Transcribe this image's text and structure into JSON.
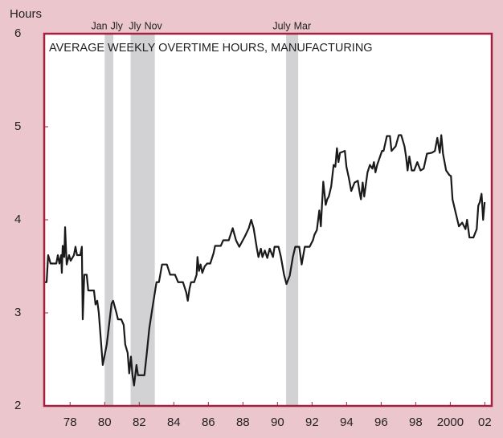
{
  "chart_data": {
    "type": "line",
    "title": "AVERAGE WEEKLY OVERTIME HOURS, MANUFACTURING",
    "y_label": "Hours",
    "color": "#1a1a1a",
    "recession_color": "#d2d2d4",
    "recessions": [
      {
        "start": 1980.0,
        "end": 1980.5,
        "start_label": "Jan",
        "end_label": "Jly"
      },
      {
        "start": 1981.5,
        "end": 1982.9,
        "start_label": "Jly",
        "end_label": "Nov"
      },
      {
        "start": 1990.5,
        "end": 1991.2,
        "start_label": "July",
        "end_label": "Mar"
      }
    ],
    "xlim": [
      1976.5,
      2002.4
    ],
    "xticks": [
      {
        "value": 1978,
        "label": "78"
      },
      {
        "value": 1980,
        "label": "80"
      },
      {
        "value": 1982,
        "label": "82"
      },
      {
        "value": 1984,
        "label": "84"
      },
      {
        "value": 1986,
        "label": "86"
      },
      {
        "value": 1988,
        "label": "88"
      },
      {
        "value": 1990,
        "label": "90"
      },
      {
        "value": 1992,
        "label": "92"
      },
      {
        "value": 1994,
        "label": "94"
      },
      {
        "value": 1996,
        "label": "96"
      },
      {
        "value": 1998,
        "label": "98"
      },
      2000,
      {
        "value": 2002,
        "label": "02"
      }
    ],
    "ylim": [
      2,
      6
    ],
    "yticks": [
      2,
      3,
      4,
      5,
      6
    ],
    "x": [
      1976.5,
      1976.64,
      1976.73,
      1976.87,
      1977.2,
      1977.29,
      1977.38,
      1977.48,
      1977.52,
      1977.57,
      1977.66,
      1977.71,
      1977.8,
      1977.94,
      1978.03,
      1978.22,
      1978.31,
      1978.4,
      1978.59,
      1978.68,
      1978.73,
      1978.82,
      1978.96,
      1979.05,
      1979.38,
      1979.47,
      1979.57,
      1979.66,
      1979.89,
      1980.12,
      1980.4,
      1980.49,
      1980.68,
      1980.77,
      1980.96,
      1981.1,
      1981.19,
      1981.33,
      1981.42,
      1981.52,
      1981.61,
      1981.7,
      1981.84,
      1981.93,
      1982.3,
      1982.44,
      1982.58,
      1982.76,
      1983.0,
      1983.14,
      1983.32,
      1983.6,
      1983.79,
      1984.07,
      1984.25,
      1984.53,
      1984.72,
      1984.81,
      1984.91,
      1985.0,
      1985.18,
      1985.32,
      1985.37,
      1985.46,
      1985.55,
      1985.65,
      1985.79,
      1985.93,
      1986.11,
      1986.3,
      1986.39,
      1986.72,
      1986.86,
      1987.18,
      1987.41,
      1987.6,
      1987.79,
      1988.11,
      1988.34,
      1988.48,
      1988.62,
      1988.81,
      1988.9,
      1989.04,
      1989.13,
      1989.27,
      1989.41,
      1989.55,
      1989.74,
      1989.83,
      1990.06,
      1990.2,
      1990.38,
      1990.52,
      1990.71,
      1990.89,
      1991.03,
      1991.26,
      1991.4,
      1991.58,
      1991.86,
      1992.05,
      1992.14,
      1992.28,
      1992.42,
      1992.51,
      1992.65,
      1992.79,
      1992.88,
      1992.97,
      1993.11,
      1993.25,
      1993.35,
      1993.44,
      1993.53,
      1993.62,
      1993.9,
      1993.99,
      1994.13,
      1994.27,
      1994.46,
      1994.65,
      1994.74,
      1994.83,
      1994.93,
      1995.02,
      1995.21,
      1995.35,
      1995.49,
      1995.58,
      1995.67,
      1995.77,
      1996.05,
      1996.14,
      1996.33,
      1996.51,
      1996.6,
      1996.84,
      1997.02,
      1997.16,
      1997.35,
      1997.44,
      1997.53,
      1997.63,
      1997.77,
      1997.91,
      1998.09,
      1998.28,
      1998.46,
      1998.65,
      1998.93,
      1999.11,
      1999.25,
      1999.39,
      1999.48,
      1999.58,
      1999.76,
      1999.95,
      2000.04,
      2000.13,
      2000.32,
      2000.5,
      2000.69,
      2000.88,
      2000.97,
      2001.11,
      2001.34,
      2001.53,
      2001.62,
      2001.71,
      2001.81,
      2001.9,
      2001.99
    ],
    "values": [
      3.33,
      3.33,
      3.62,
      3.53,
      3.53,
      3.62,
      3.53,
      3.62,
      3.43,
      3.72,
      3.6,
      3.92,
      3.52,
      3.62,
      3.56,
      3.62,
      3.71,
      3.62,
      3.62,
      3.71,
      2.93,
      3.41,
      3.41,
      3.24,
      3.24,
      3.09,
      3.13,
      3.0,
      2.44,
      2.66,
      3.1,
      3.13,
      3.0,
      2.93,
      2.93,
      2.87,
      2.66,
      2.57,
      2.35,
      2.53,
      2.33,
      2.22,
      2.44,
      2.33,
      2.33,
      2.57,
      2.83,
      3.05,
      3.33,
      3.33,
      3.52,
      3.52,
      3.41,
      3.41,
      3.33,
      3.33,
      3.22,
      3.13,
      3.26,
      3.33,
      3.33,
      3.41,
      3.6,
      3.45,
      3.52,
      3.43,
      3.5,
      3.53,
      3.53,
      3.64,
      3.72,
      3.72,
      3.78,
      3.78,
      3.91,
      3.78,
      3.71,
      3.82,
      3.91,
      4.0,
      3.91,
      3.69,
      3.6,
      3.69,
      3.6,
      3.67,
      3.59,
      3.69,
      3.6,
      3.71,
      3.71,
      3.6,
      3.41,
      3.31,
      3.4,
      3.6,
      3.71,
      3.71,
      3.52,
      3.71,
      3.71,
      3.78,
      3.84,
      3.89,
      4.1,
      3.93,
      4.41,
      4.16,
      4.22,
      4.25,
      4.36,
      4.59,
      4.57,
      4.77,
      4.62,
      4.72,
      4.74,
      4.57,
      4.45,
      4.31,
      4.4,
      4.42,
      4.31,
      4.22,
      4.4,
      4.25,
      4.51,
      4.59,
      4.55,
      4.62,
      4.51,
      4.59,
      4.74,
      4.74,
      4.9,
      4.9,
      4.74,
      4.79,
      4.91,
      4.91,
      4.79,
      4.68,
      4.53,
      4.68,
      4.53,
      4.53,
      4.62,
      4.53,
      4.55,
      4.71,
      4.72,
      4.74,
      4.88,
      4.72,
      4.91,
      4.71,
      4.53,
      4.48,
      4.47,
      4.22,
      4.07,
      3.93,
      3.97,
      3.9,
      4.0,
      3.81,
      3.81,
      3.9,
      4.15,
      4.19,
      4.28,
      4.0,
      4.19
    ]
  }
}
